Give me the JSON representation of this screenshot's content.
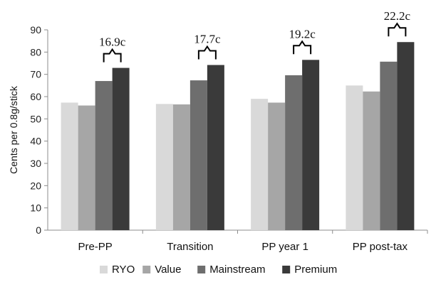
{
  "chart_data": {
    "type": "bar",
    "title": "",
    "xlabel": "",
    "ylabel": "Cents per 0.8g/stick",
    "ylim": [
      0,
      90
    ],
    "yticks": [
      0,
      10,
      20,
      30,
      40,
      50,
      60,
      70,
      80,
      90
    ],
    "grid": false,
    "legend_position": "bottom",
    "categories": [
      "Pre-PP",
      "Transition",
      "PP year 1",
      "PP post-tax"
    ],
    "series": [
      {
        "name": "RYO",
        "color": "#d9d9d9",
        "values": [
          57.3,
          56.7,
          59.0,
          65.0
        ]
      },
      {
        "name": "Value",
        "color": "#a6a6a6",
        "values": [
          56.0,
          56.5,
          57.3,
          62.3
        ]
      },
      {
        "name": "Mainstream",
        "color": "#6e6e6e",
        "values": [
          67.0,
          67.3,
          69.6,
          75.7
        ]
      },
      {
        "name": "Premium",
        "color": "#3a3a3a",
        "values": [
          72.9,
          74.2,
          76.5,
          84.5
        ]
      }
    ],
    "annotations": [
      {
        "text": "16.9c",
        "category": "Pre-PP"
      },
      {
        "text": "17.7c",
        "category": "Transition"
      },
      {
        "text": "19.2c",
        "category": "PP year 1"
      },
      {
        "text": "22.2c",
        "category": "PP post-tax"
      }
    ]
  }
}
